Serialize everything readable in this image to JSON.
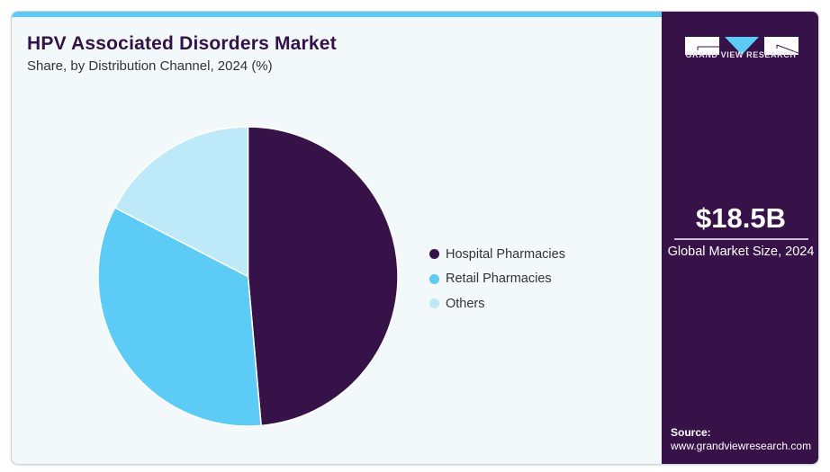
{
  "header": {
    "title": "HPV Associated Disorders Market",
    "subtitle": "Share, by Distribution Channel, 2024 (%)"
  },
  "chart_data": {
    "type": "pie",
    "title": "HPV Associated Disorders Market",
    "subtitle": "Share, by Distribution Channel, 2024 (%)",
    "categories": [
      "Hospital Pharmacies",
      "Retail Pharmacies",
      "Others"
    ],
    "values": [
      48.6,
      34.0,
      17.4
    ],
    "colors": [
      "#371249",
      "#5ccbf5",
      "#bde9f9"
    ],
    "start_angle": "12 o'clock",
    "direction": "clockwise",
    "legend_position": "right"
  },
  "legend": {
    "items": [
      {
        "label": "Hospital Pharmacies",
        "color": "#371249"
      },
      {
        "label": "Retail Pharmacies",
        "color": "#5ccbf5"
      },
      {
        "label": "Others",
        "color": "#bde9f9"
      }
    ]
  },
  "sidebar": {
    "logo_text": "GRAND VIEW RESEARCH",
    "market_value": "$18.5B",
    "market_label": "Global Market Size, 2024",
    "source_label": "Source:",
    "source_url": "www.grandviewresearch.com"
  },
  "colors": {
    "accent": "#5ccbf5",
    "brand": "#371249",
    "background": "#f3f8fb"
  }
}
